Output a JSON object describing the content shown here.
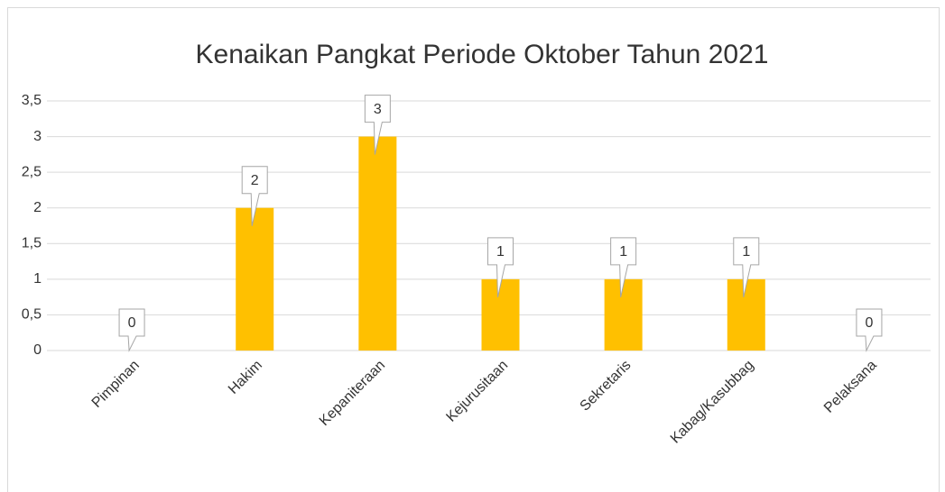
{
  "chart_data": {
    "type": "bar",
    "title": "Kenaikan Pangkat Periode Oktober Tahun 2021",
    "categories": [
      "Pimpinan",
      "Hakim",
      "Kepaniteraan",
      "Kejurusitaan",
      "Sekretaris",
      "Kabag/Kasubbag",
      "Pelaksana"
    ],
    "values": [
      0,
      2,
      3,
      1,
      1,
      1,
      0
    ],
    "color": "#ffc000",
    "ylim": [
      0,
      3.5
    ],
    "yticks": [
      0,
      {
        "value": 0.5,
        "label": "0,5"
      },
      1,
      {
        "value": 1.5,
        "label": "1,5"
      },
      2,
      {
        "value": 2.5,
        "label": "2,5"
      },
      3,
      {
        "value": 3.5,
        "label": "3,5"
      }
    ],
    "grid": true
  }
}
